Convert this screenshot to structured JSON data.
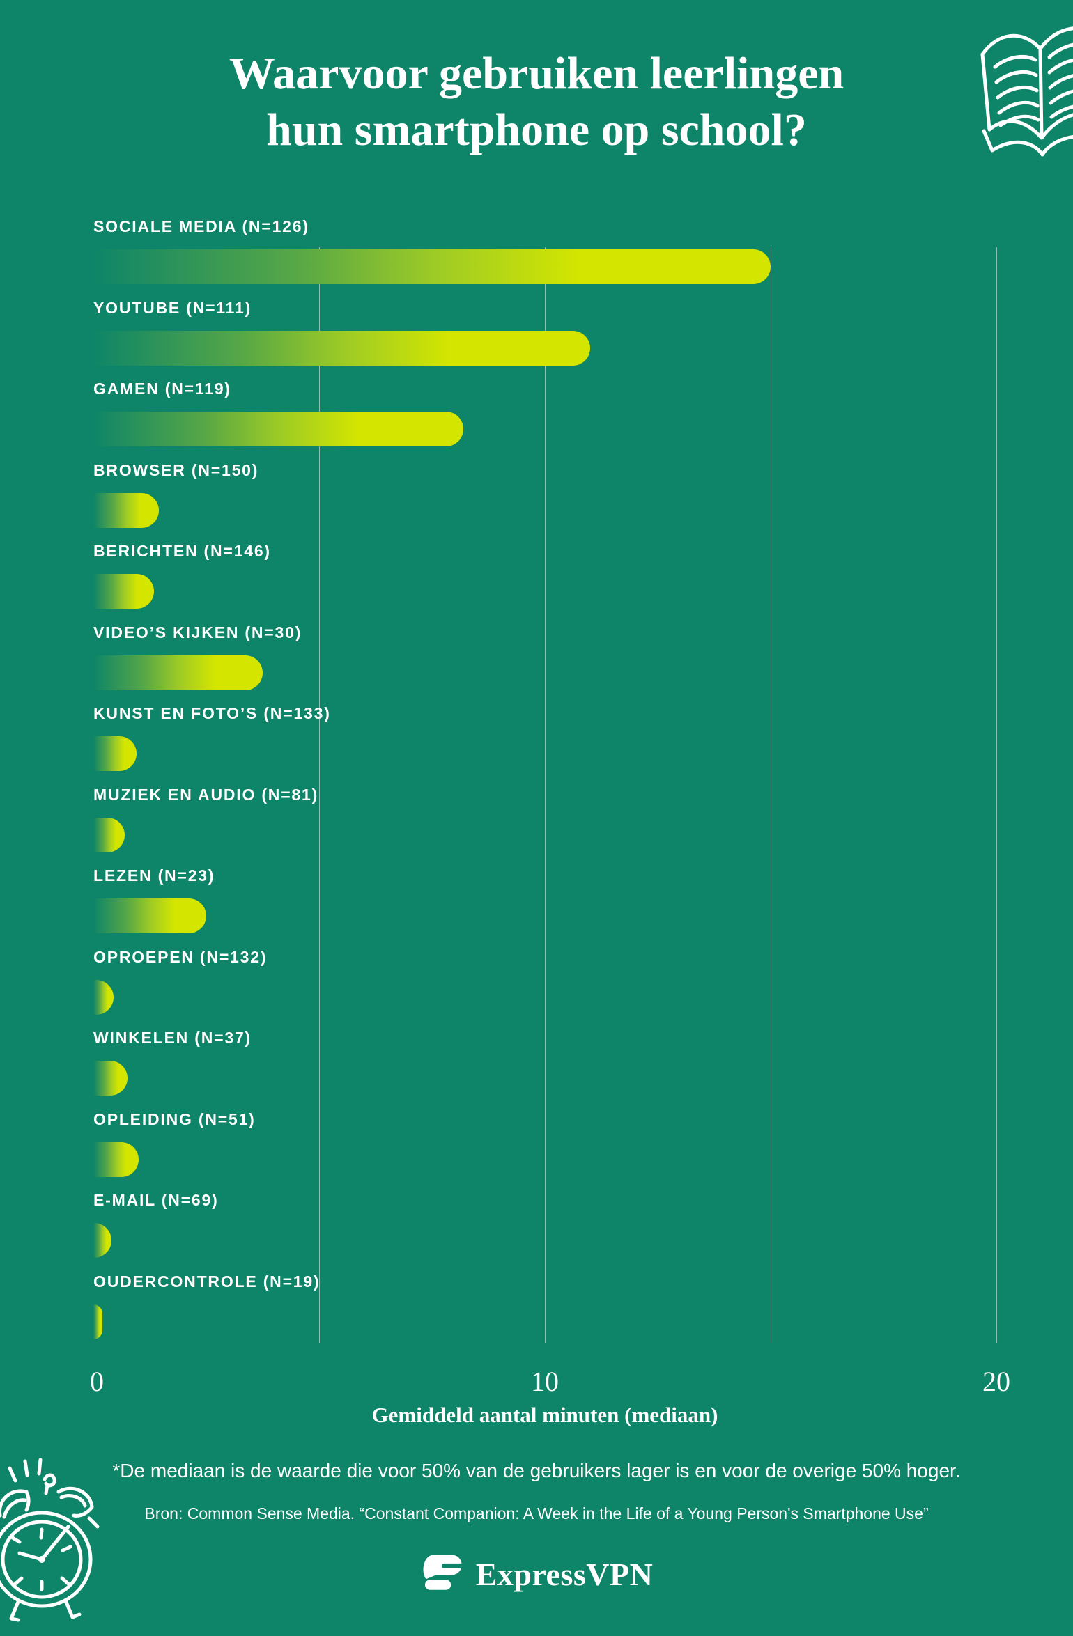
{
  "page": {
    "title_line1": "Waarvoor gebruiken leerlingen",
    "title_line2": "hun smartphone op school?"
  },
  "chart_data": {
    "type": "bar",
    "orientation": "horizontal",
    "title": "Waarvoor gebruiken leerlingen hun smartphone op school?",
    "categories": [
      "SOCIALE MEDIA",
      "YOUTUBE",
      "GAMEN",
      "BROWSER",
      "BERICHTEN",
      "VIDEO’S KIJKEN",
      "KUNST EN FOTO’S",
      "MUZIEK EN AUDIO",
      "LEZEN",
      "OPROEPEN",
      "WINKELEN",
      "OPLEIDING",
      "E-MAIL",
      "OUDERCONTROLE"
    ],
    "sample_sizes": [
      126,
      111,
      119,
      150,
      146,
      30,
      133,
      81,
      23,
      132,
      37,
      51,
      69,
      19
    ],
    "label_format": "{category} (N={n})",
    "values": [
      15,
      11,
      8.2,
      1.45,
      1.35,
      3.75,
      0.95,
      0.7,
      2.5,
      0.45,
      0.75,
      1.0,
      0.4,
      0.2
    ],
    "xlabel": "Gemiddeld aantal minuten (mediaan)",
    "xlim": [
      0,
      20
    ],
    "xticks": [
      0,
      10,
      20
    ],
    "gridlines_at": [
      5,
      10,
      15,
      20
    ],
    "legend": "none",
    "grid": "vertical",
    "bar_gradient": [
      "#0E8568",
      "#57A746",
      "#9CCA26",
      "#D4E600"
    ]
  },
  "footer": {
    "footnote": "*De mediaan is de waarde die voor 50% van de gebruikers lager is en voor de overige 50% hoger.",
    "source": "Bron: Common Sense Media. “Constant Companion: A Week in the Life of a Young Person's Smartphone Use”",
    "brand": "ExpressVPN"
  },
  "icons": {
    "top_right": "open-book-doodle",
    "bottom_left": "alarm-clock-doodle",
    "brand_mark": "expressvpn-logo"
  },
  "colors": {
    "background": "#0E8568",
    "bar_yellow": "#D4E600",
    "bar_mid_green": "#9CCA26",
    "text": "#FFFFFF",
    "gridline": "rgba(255,255,255,0.5)"
  }
}
